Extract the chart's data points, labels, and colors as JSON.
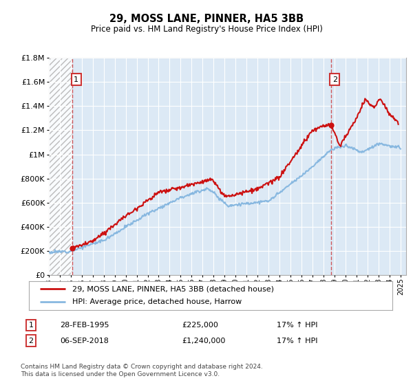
{
  "title": "29, MOSS LANE, PINNER, HA5 3BB",
  "subtitle": "Price paid vs. HM Land Registry's House Price Index (HPI)",
  "ylim": [
    0,
    1800000
  ],
  "yticks": [
    0,
    200000,
    400000,
    600000,
    800000,
    1000000,
    1200000,
    1400000,
    1600000,
    1800000
  ],
  "ytick_labels": [
    "£0",
    "£200K",
    "£400K",
    "£600K",
    "£800K",
    "£1M",
    "£1.2M",
    "£1.4M",
    "£1.6M",
    "£1.8M"
  ],
  "xlim_start": 1993.0,
  "xlim_end": 2025.5,
  "background_color": "#ffffff",
  "plot_bg_color": "#dce9f5",
  "grid_color": "#ffffff",
  "red_line_color": "#cc1111",
  "blue_line_color": "#88b8e0",
  "marker1_x": 1995.15,
  "marker1_y": 225000,
  "marker2_x": 2018.67,
  "marker2_y": 1240000,
  "legend_line1": "29, MOSS LANE, PINNER, HA5 3BB (detached house)",
  "legend_line2": "HPI: Average price, detached house, Harrow",
  "ann1_label": "1",
  "ann1_date": "28-FEB-1995",
  "ann1_price": "£225,000",
  "ann1_hpi": "17% ↑ HPI",
  "ann2_label": "2",
  "ann2_date": "06-SEP-2018",
  "ann2_price": "£1,240,000",
  "ann2_hpi": "17% ↑ HPI",
  "footer": "Contains HM Land Registry data © Crown copyright and database right 2024.\nThis data is licensed under the Open Government Licence v3.0.",
  "xtick_years": [
    1993,
    1994,
    1995,
    1996,
    1997,
    1998,
    1999,
    2000,
    2001,
    2002,
    2003,
    2004,
    2005,
    2006,
    2007,
    2008,
    2009,
    2010,
    2011,
    2012,
    2013,
    2014,
    2015,
    2016,
    2017,
    2018,
    2019,
    2020,
    2021,
    2022,
    2023,
    2024,
    2025
  ]
}
